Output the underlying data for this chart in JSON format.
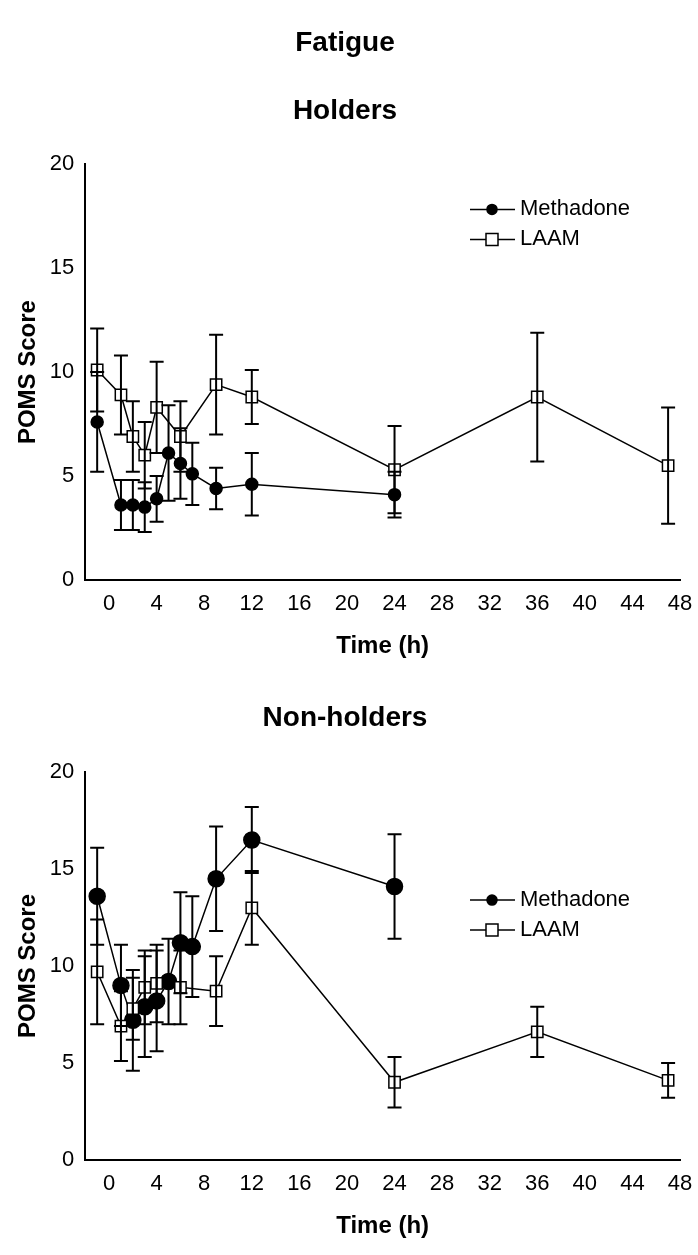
{
  "chart_data": [
    {
      "type": "line",
      "title": "Fatigue",
      "subtitle": "Holders",
      "xlabel": "Time (h)",
      "ylabel": "POMS Score",
      "xlim": [
        -2,
        48
      ],
      "xticks": [
        0,
        4,
        8,
        12,
        16,
        20,
        24,
        28,
        32,
        36,
        40,
        44,
        48
      ],
      "ylim": [
        0,
        20
      ],
      "yticks": [
        0,
        5,
        10,
        15,
        20
      ],
      "legend": "top right",
      "grid": false,
      "line_style": "solid",
      "series": [
        {
          "name": "Methadone",
          "color": "#000000",
          "marker": "circle",
          "x": [
            -1,
            1,
            2,
            3,
            4,
            5,
            6,
            7,
            9,
            12,
            24
          ],
          "values": [
            7.6,
            3.6,
            3.6,
            3.5,
            3.9,
            6.1,
            5.6,
            5.1,
            4.4,
            4.6,
            4.1
          ],
          "errors": [
            2.4,
            1.2,
            1.2,
            1.2,
            1.1,
            2.3,
            1.7,
            1.5,
            1.0,
            1.5,
            1.1
          ]
        },
        {
          "name": "LAAM",
          "color": "#000000",
          "marker": "square",
          "x": [
            -1,
            1,
            2,
            3,
            4,
            6,
            9,
            12,
            24,
            36,
            47
          ],
          "values": [
            10.1,
            8.9,
            6.9,
            6.0,
            8.3,
            6.9,
            9.4,
            8.8,
            5.3,
            8.8,
            5.5
          ],
          "errors": [
            2.0,
            1.9,
            1.7,
            1.6,
            2.2,
            1.7,
            2.4,
            1.3,
            2.1,
            3.1,
            2.8
          ]
        }
      ]
    },
    {
      "type": "line",
      "title": "Non-holders",
      "xlabel": "Time (h)",
      "ylabel": "POMS Score",
      "xlim": [
        -2,
        48
      ],
      "xticks": [
        0,
        4,
        8,
        12,
        16,
        20,
        24,
        28,
        32,
        36,
        40,
        44,
        48
      ],
      "ylim": [
        0,
        20
      ],
      "yticks": [
        0,
        5,
        10,
        15,
        20
      ],
      "legend": "right",
      "grid": false,
      "line_style": "solid",
      "series": [
        {
          "name": "Methadone",
          "color": "#000000",
          "marker": "circle",
          "x": [
            -1,
            1,
            2,
            3,
            4,
            5,
            6,
            7,
            9,
            12,
            24
          ],
          "values": [
            13.6,
            9.0,
            7.2,
            7.9,
            8.2,
            9.2,
            11.2,
            11.0,
            14.5,
            16.5,
            14.1
          ],
          "errors": [
            2.5,
            2.1,
            2.6,
            2.6,
            2.6,
            2.2,
            2.6,
            2.6,
            2.7,
            1.7,
            2.7
          ]
        },
        {
          "name": "LAAM",
          "color": "#000000",
          "marker": "square",
          "x": [
            -1,
            1,
            2,
            3,
            4,
            6,
            9,
            12,
            24,
            36,
            47
          ],
          "values": [
            9.7,
            6.9,
            7.8,
            8.9,
            9.1,
            8.9,
            8.7,
            13.0,
            4.0,
            6.6,
            4.1
          ],
          "errors": [
            [
              7.0,
              12.4
            ],
            1.8,
            1.6,
            1.9,
            2.0,
            1.9,
            1.8,
            1.9,
            1.3,
            1.3,
            0.9
          ]
        }
      ]
    }
  ]
}
